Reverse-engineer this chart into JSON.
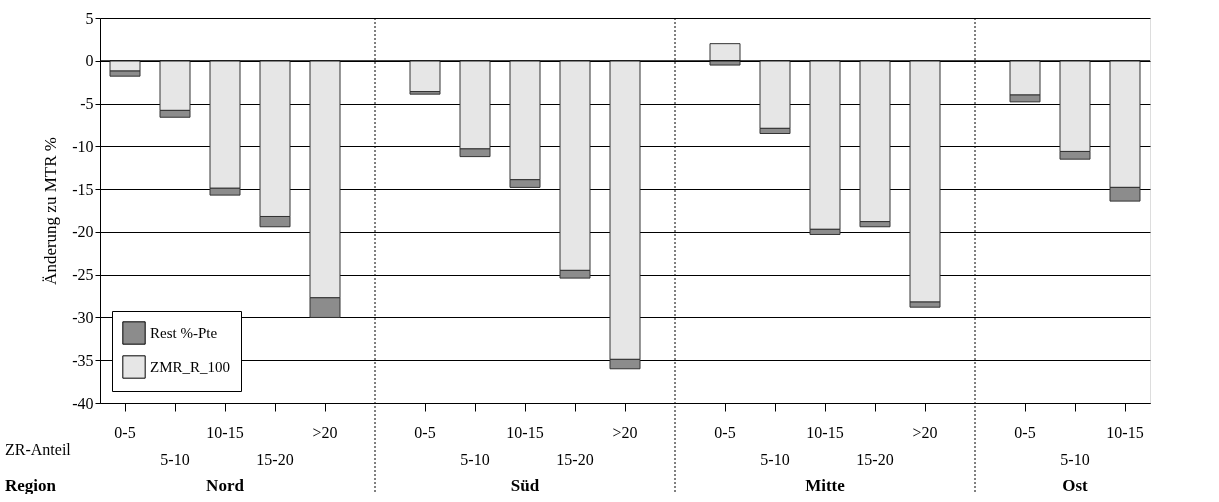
{
  "chart_data": {
    "type": "bar",
    "stacked": true,
    "ylabel": "Änderung zu MTR %",
    "xlabel": "ZR-Anteil",
    "annotations": [
      "Region",
      "Nord",
      "Süd",
      "Mitte",
      "Ost"
    ],
    "categories": [
      "0-5",
      "5-10",
      "10-15",
      "15-20",
      ">20",
      "0-5",
      "5-10",
      "10-15",
      "15-20",
      ">20",
      "0-5",
      "5-10",
      "10-15",
      "15-20",
      ">20",
      "0-5",
      "5-10",
      "10-15"
    ],
    "series": [
      {
        "name": "ZMR_R_100",
        "color": "#e6e6e6",
        "values": [
          -1.2,
          -5.8,
          -14.9,
          -18.2,
          -27.7,
          -3.6,
          -10.3,
          -13.9,
          -24.5,
          -34.9,
          2.0,
          -7.9,
          -19.7,
          -18.8,
          -28.2,
          -4.0,
          -10.6,
          -14.8
        ]
      },
      {
        "name": "Rest %-Pte",
        "color": "#8c8c8c",
        "values": [
          -0.6,
          -0.8,
          -0.8,
          -1.2,
          -2.3,
          -0.3,
          -0.9,
          -0.9,
          -0.9,
          -1.1,
          -0.5,
          -0.6,
          -0.6,
          -0.6,
          -0.6,
          -0.8,
          -0.9,
          -1.6
        ]
      }
    ],
    "ylim": [
      -40,
      5
    ],
    "yticks": [
      5,
      0,
      -5,
      -10,
      -15,
      -20,
      -25,
      -30,
      -35,
      -40
    ],
    "grid": "y",
    "legend": "bottom left"
  }
}
